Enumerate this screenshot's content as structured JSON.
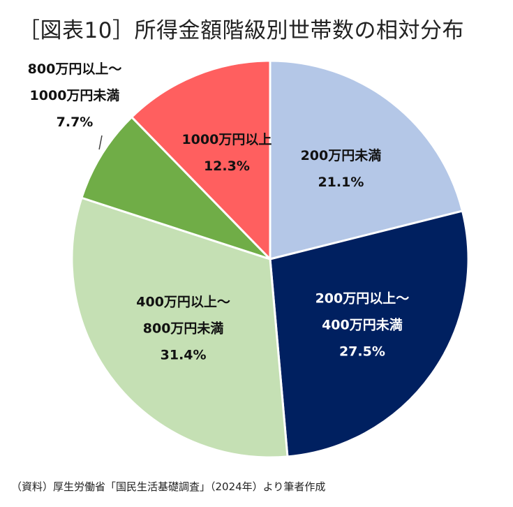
{
  "chart_data": {
    "type": "pie",
    "title": "［図表10］所得金額階級別世帯数の相対分布",
    "slices": [
      {
        "label_lines": [
          "200万円未満"
        ],
        "value": 21.1,
        "value_label": "21.1%",
        "color": "#b4c7e7",
        "text_color": "#111111"
      },
      {
        "label_lines": [
          "200万円以上～",
          "400万円未満"
        ],
        "value": 27.5,
        "value_label": "27.5%",
        "color": "#002060",
        "text_color": "#ffffff"
      },
      {
        "label_lines": [
          "400万円以上～",
          "800万円未満"
        ],
        "value": 31.4,
        "value_label": "31.4%",
        "color": "#c5e0b4",
        "text_color": "#111111"
      },
      {
        "label_lines": [
          "800万円以上～",
          "1000万円未満"
        ],
        "value": 7.7,
        "value_label": "7.7%",
        "color": "#70ad47",
        "text_color": "#111111",
        "label_outside": true
      },
      {
        "label_lines": [
          "1000万円以上"
        ],
        "value": 12.3,
        "value_label": "12.3%",
        "color": "#ff5f5f",
        "text_color": "#111111"
      }
    ],
    "start": "12 o'clock",
    "direction": "clockwise",
    "legend": "none"
  },
  "source_note": "（資料）厚生労働省「国民生活基礎調査」（2024年）より筆者作成"
}
